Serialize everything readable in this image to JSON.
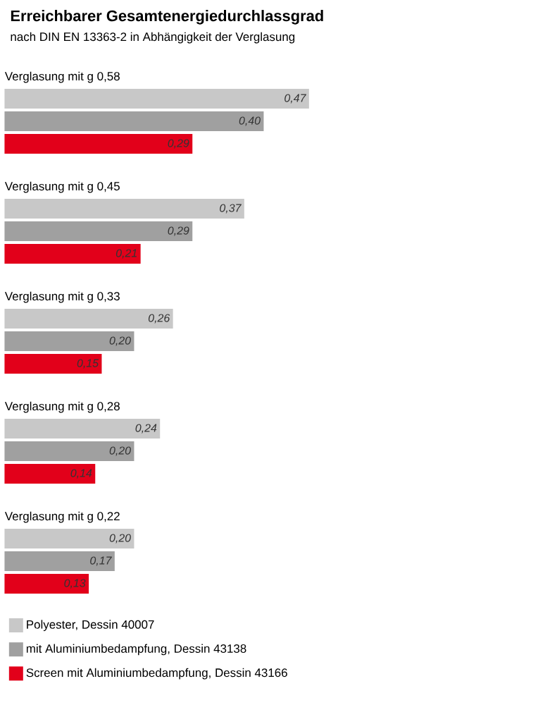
{
  "chart_data": {
    "type": "bar",
    "orientation": "horizontal",
    "title": "Erreichbarer Gesamtenergiedurchlassgrad",
    "subtitle": "nach DIN EN 13363-2 in Abhängigkeit der Verglasung",
    "categories": [
      "Verglasung mit g 0,58",
      "Verglasung mit g 0,45",
      "Verglasung mit g 0,33",
      "Verglasung mit g 0,28",
      "Verglasung mit g 0,22"
    ],
    "series": [
      {
        "name": "Polyester, Dessin 40007",
        "color": "#c8c8c8",
        "values": [
          0.47,
          0.37,
          0.26,
          0.24,
          0.2
        ],
        "value_labels": [
          "0,47",
          "0,37",
          "0,26",
          "0,24",
          "0,20"
        ]
      },
      {
        "name": "mit Aluminiumbedampfung, Dessin 43138",
        "color": "#a0a0a0",
        "values": [
          0.4,
          0.29,
          0.2,
          0.2,
          0.17
        ],
        "value_labels": [
          "0,40",
          "0,29",
          "0,20",
          "0,20",
          "0,17"
        ]
      },
      {
        "name": "Screen mit Aluminiumbedampfung, Dessin 43166",
        "color": "#e2001a",
        "values": [
          0.29,
          0.21,
          0.15,
          0.14,
          0.13
        ],
        "value_labels": [
          "0,29",
          "0,21",
          "0,15",
          "0,14",
          "0,13"
        ]
      }
    ],
    "legend": "bottom"
  }
}
